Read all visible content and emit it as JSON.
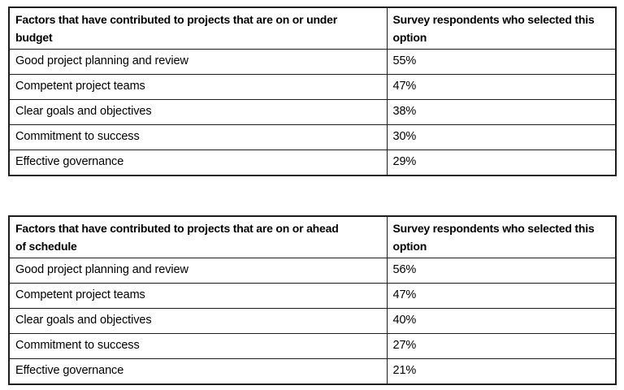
{
  "page": {
    "background_color": "#ffffff",
    "text_color": "#000000",
    "border_color": "#1d1d1d"
  },
  "tables": [
    {
      "id": "budget-factors",
      "headers": [
        "Factors that have contributed to projects that are on or under\nbudget",
        "Survey respondents who selected this\noption"
      ],
      "rows": [
        {
          "factor": "Good project planning and review",
          "value": "55%"
        },
        {
          "factor": "Competent project teams",
          "value": "47%"
        },
        {
          "factor": "Clear goals and objectives",
          "value": "38%"
        },
        {
          "factor": "Commitment to success",
          "value": "30%"
        },
        {
          "factor": "Effective governance",
          "value": "29%"
        }
      ]
    },
    {
      "id": "schedule-factors",
      "headers": [
        "Factors that have contributed to projects that are on or ahead\nof schedule",
        "Survey respondents who selected this\noption"
      ],
      "rows": [
        {
          "factor": "Good project planning and review",
          "value": "56%"
        },
        {
          "factor": "Competent project teams",
          "value": "47%"
        },
        {
          "factor": "Clear goals and objectives",
          "value": "40%"
        },
        {
          "factor": "Commitment to success",
          "value": "27%"
        },
        {
          "factor": "Effective governance",
          "value": "21%"
        }
      ]
    }
  ],
  "chart_data": [
    {
      "type": "table",
      "title": "Factors that have contributed to projects that are on or under budget",
      "columns": [
        "Factor",
        "Survey respondents who selected this option"
      ],
      "categories": [
        "Good project planning and review",
        "Competent project teams",
        "Clear goals and objectives",
        "Commitment to success",
        "Effective governance"
      ],
      "values": [
        55,
        47,
        38,
        30,
        29
      ],
      "value_unit": "%"
    },
    {
      "type": "table",
      "title": "Factors that have contributed to projects that are on or ahead of schedule",
      "columns": [
        "Factor",
        "Survey respondents who selected this option"
      ],
      "categories": [
        "Good project planning and review",
        "Competent project teams",
        "Clear goals and objectives",
        "Commitment to success",
        "Effective governance"
      ],
      "values": [
        56,
        47,
        40,
        27,
        21
      ],
      "value_unit": "%"
    }
  ]
}
